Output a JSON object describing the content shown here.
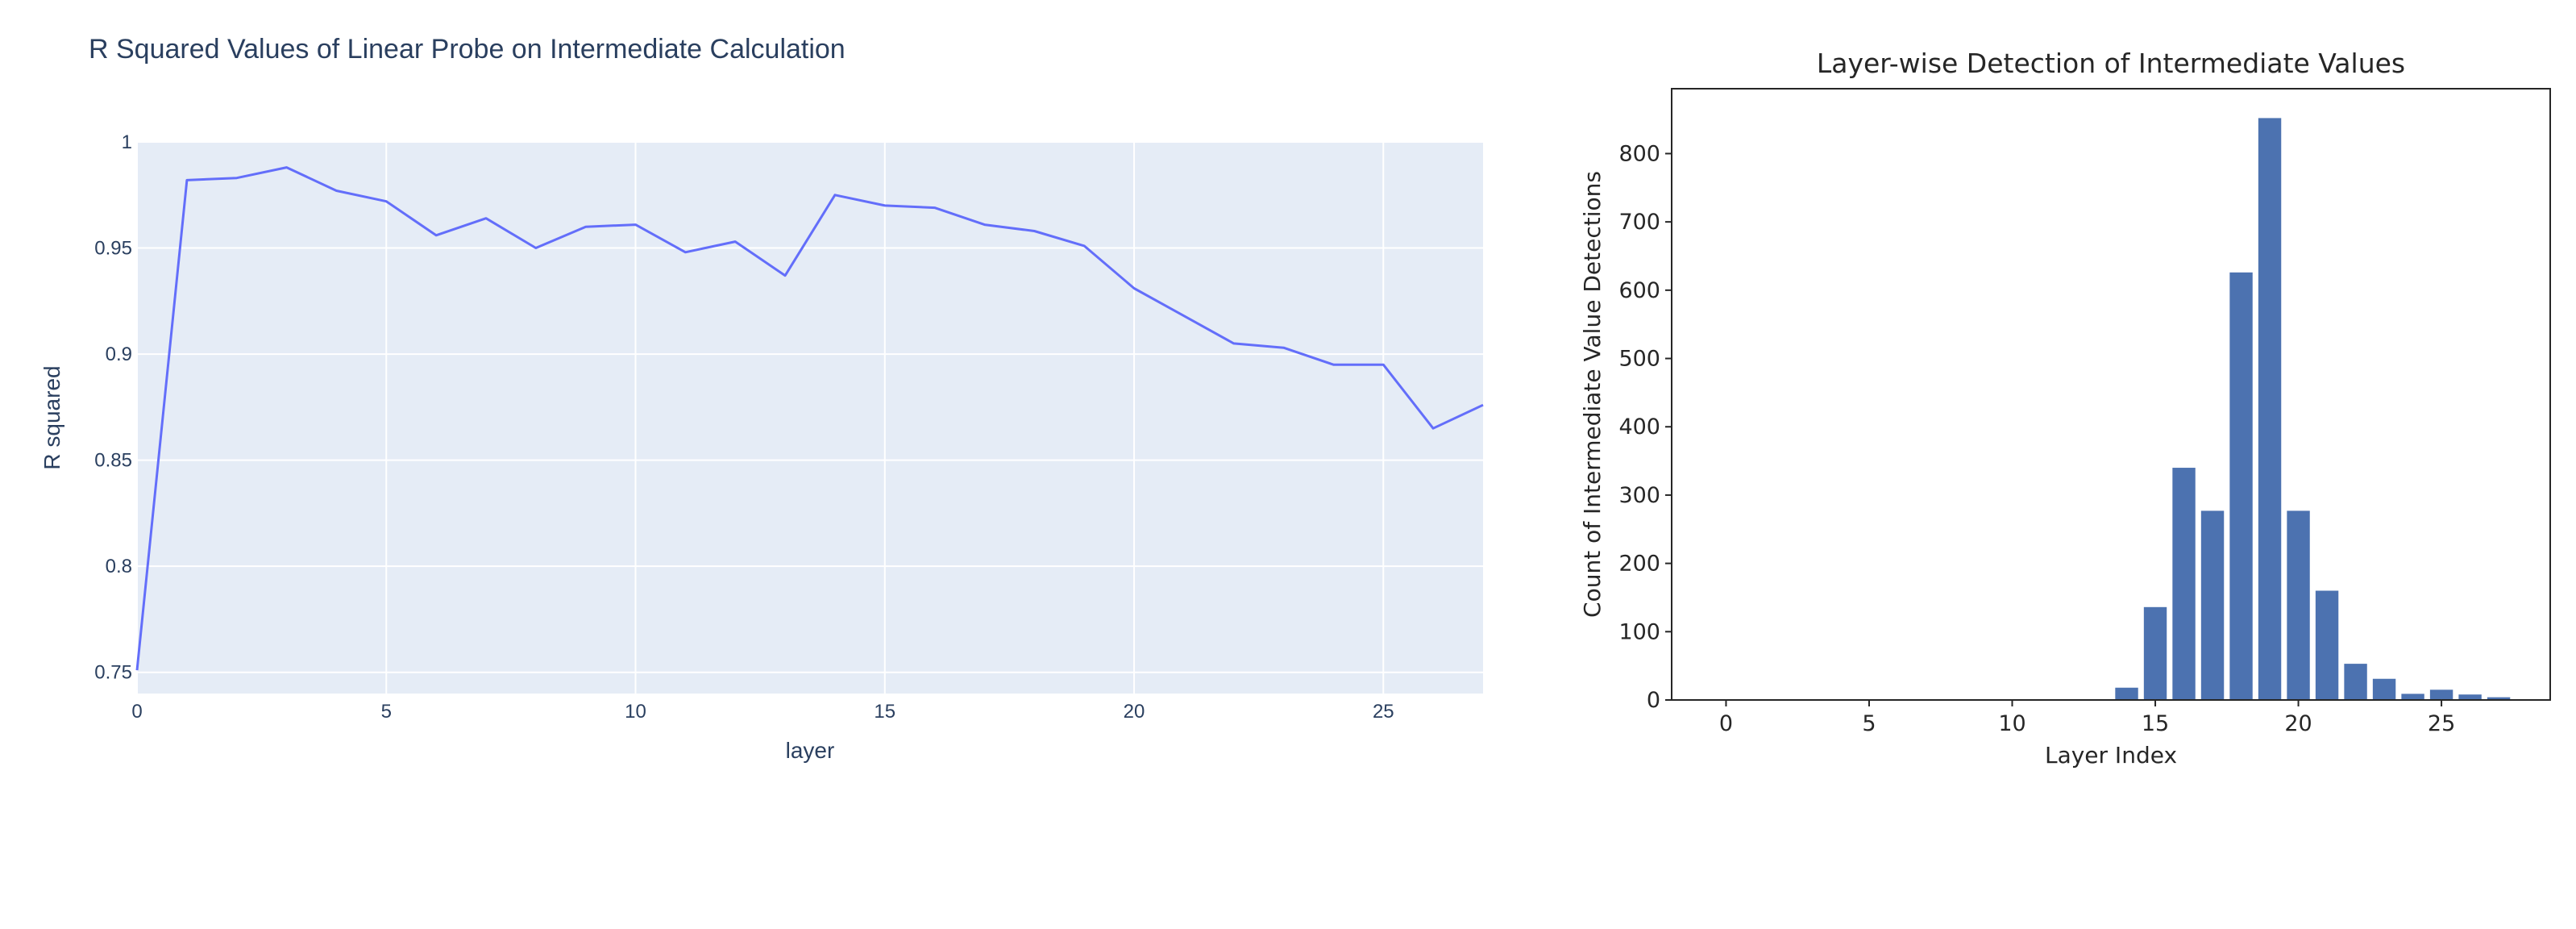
{
  "charts": [
    {
      "chart_data": {
        "type": "line",
        "title": "R Squared Values of Linear Probe on Intermediate Calculation",
        "xlabel": "layer",
        "ylabel": "R squared",
        "xlim": [
          0,
          27
        ],
        "ylim": [
          0.74,
          1.0
        ],
        "xticks": [
          0,
          5,
          10,
          15,
          20,
          25
        ],
        "yticks": [
          0.75,
          0.8,
          0.85,
          0.9,
          0.95,
          1
        ],
        "ytick_labels": [
          "0.75",
          "0.8",
          "0.85",
          "0.9",
          "0.95",
          "1"
        ],
        "grid": true,
        "series": [
          {
            "x": [
              0,
              1,
              2,
              3,
              4,
              5,
              6,
              7,
              8,
              9,
              10,
              11,
              12,
              13,
              14,
              15,
              16,
              17,
              18,
              19,
              20,
              21,
              22,
              23,
              24,
              25,
              26,
              27
            ],
            "values": [
              0.751,
              0.982,
              0.983,
              0.988,
              0.977,
              0.972,
              0.956,
              0.964,
              0.95,
              0.96,
              0.961,
              0.948,
              0.953,
              0.937,
              0.975,
              0.97,
              0.969,
              0.961,
              0.958,
              0.951,
              0.931,
              0.918,
              0.905,
              0.903,
              0.895,
              0.895,
              0.865,
              0.876
            ]
          }
        ]
      },
      "colors": {
        "line": "#636efa",
        "plot_bg": "#e5ecf6",
        "grid": "#ffffff",
        "text": "#2a3f5f"
      }
    },
    {
      "chart_data": {
        "type": "bar",
        "title": "Layer-wise Detection of Intermediate Values",
        "xlabel": "Layer Index",
        "ylabel": "Count of Intermediate Value Detections",
        "xlim": [
          -1.9,
          28.8
        ],
        "ylim": [
          0,
          895
        ],
        "xticks": [
          0,
          5,
          10,
          15,
          20,
          25
        ],
        "yticks": [
          0,
          100,
          200,
          300,
          400,
          500,
          600,
          700,
          800
        ],
        "grid": false,
        "categories": [
          14,
          15,
          16,
          17,
          18,
          19,
          20,
          21,
          22,
          23,
          24,
          25,
          26,
          27
        ],
        "values": [
          18,
          136,
          340,
          277,
          626,
          852,
          277,
          160,
          53,
          31,
          9,
          15,
          8,
          4
        ]
      },
      "colors": {
        "bar": "#4c72b0",
        "axes": "#262626",
        "text": "#262626"
      }
    }
  ]
}
